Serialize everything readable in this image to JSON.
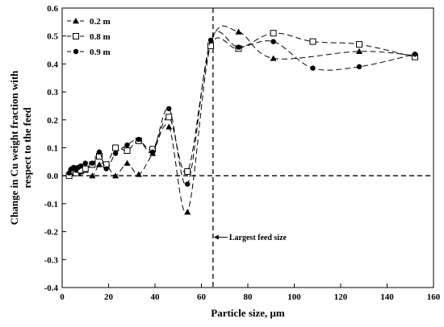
{
  "chart_data": {
    "type": "line",
    "xlabel": "Particle size, μm",
    "ylabel": "Change in Cu weight fraction with respect to the feed",
    "xlim": [
      0,
      160
    ],
    "ylim": [
      -0.4,
      0.6
    ],
    "xticks": [
      0,
      20,
      40,
      60,
      80,
      100,
      120,
      140,
      160
    ],
    "yticks": [
      -0.4,
      -0.3,
      -0.2,
      -0.1,
      0.0,
      0.1,
      0.2,
      0.3,
      0.4,
      0.5,
      0.6
    ],
    "ytick_labels": [
      "-0.4",
      "-0.3",
      "-0.2",
      "-0.1",
      "0.0",
      "0.1",
      "0.2",
      "0.3",
      "0.4",
      "0.5",
      "0.6"
    ],
    "legend_position": "top-left",
    "reference_lines": [
      {
        "orientation": "horizontal",
        "value": 0.0,
        "style": "dashed"
      },
      {
        "orientation": "vertical",
        "value": 65,
        "style": "dashed"
      }
    ],
    "annotation": {
      "text": "Largest feed size",
      "x": 65,
      "y": -0.22
    },
    "series": [
      {
        "name": "0.2 m",
        "marker": "triangle",
        "x": [
          3,
          4,
          5,
          6,
          7,
          8,
          10,
          13,
          16,
          19,
          23,
          28,
          33,
          39,
          46,
          54,
          64,
          76,
          91,
          128,
          152
        ],
        "y": [
          0.005,
          0.01,
          0.02,
          0.015,
          0.01,
          0.015,
          0.02,
          0.0,
          0.04,
          0.04,
          0.0,
          0.045,
          0.005,
          0.08,
          0.175,
          -0.13,
          0.47,
          0.515,
          0.42,
          0.445,
          0.43
        ]
      },
      {
        "name": "0.8 m",
        "marker": "square",
        "x": [
          3,
          4,
          5,
          6,
          7,
          8,
          10,
          13,
          16,
          19,
          23,
          28,
          33,
          39,
          46,
          54,
          64,
          76,
          91,
          108,
          128,
          152
        ],
        "y": [
          0.0,
          0.015,
          0.02,
          0.01,
          0.025,
          0.02,
          0.025,
          0.04,
          0.07,
          0.04,
          0.1,
          0.09,
          0.125,
          0.095,
          0.21,
          0.015,
          0.465,
          0.455,
          0.51,
          0.48,
          0.47,
          0.425
        ]
      },
      {
        "name": "0.9 m",
        "marker": "circle",
        "x": [
          3,
          4,
          5,
          6,
          7,
          8,
          10,
          13,
          16,
          19,
          23,
          28,
          33,
          39,
          46,
          54,
          64,
          76,
          91,
          108,
          128,
          152
        ],
        "y": [
          0.01,
          0.025,
          0.03,
          0.02,
          0.03,
          0.035,
          0.045,
          0.045,
          0.085,
          0.025,
          0.08,
          0.11,
          0.13,
          0.085,
          0.24,
          -0.03,
          0.485,
          0.46,
          0.48,
          0.385,
          0.39,
          0.435
        ]
      }
    ]
  }
}
